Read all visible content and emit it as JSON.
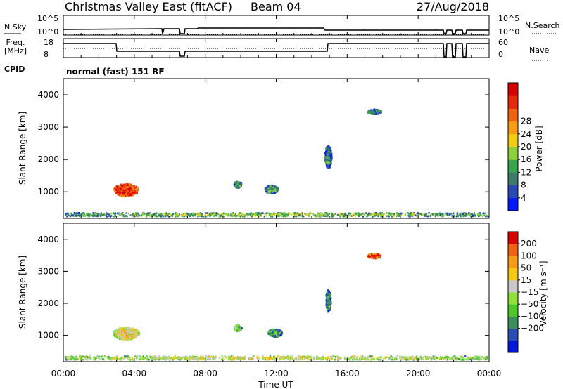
{
  "header": {
    "title": "Christmas Valley East (fitACF)",
    "beam": "Beam 04",
    "date": "27/Aug/2018"
  },
  "top_panels": {
    "nsky_label": "N.Sky",
    "nsearch_label": "N.Search",
    "nsky_ticks": [
      "10^5",
      "10^0"
    ],
    "freq_label_1": "Freq.",
    "freq_label_2": "[MHz]",
    "freq_ticks": [
      "18",
      "8"
    ],
    "nave_label": "Nave",
    "nave_ticks": [
      "60",
      "0"
    ],
    "cpid_label": "CPID",
    "cpid_value": "normal (fast) 151 RF"
  },
  "x_axis": {
    "label": "Time UT",
    "ticks": [
      "00:00",
      "04:00",
      "08:00",
      "12:00",
      "16:00",
      "20:00",
      "00:00"
    ],
    "tick_hours": [
      0,
      4,
      8,
      12,
      16,
      20,
      24
    ]
  },
  "chart_data": [
    {
      "type": "heatmap",
      "title": "Power",
      "ylabel": "Slant Range [km]",
      "xlabel": "Time UT",
      "xlim_hours": [
        0,
        24
      ],
      "ylim_km": [
        180,
        4500
      ],
      "yticks": [
        "1000",
        "2000",
        "3000",
        "4000"
      ],
      "colorbar_label": "Power [dB]",
      "colorbar_ticks": [
        "4",
        "8",
        "12",
        "16",
        "20",
        "24",
        "28"
      ],
      "colorbar_colors": [
        "#0019ff",
        "#2a47b2",
        "#3d7b6b",
        "#3aa34d",
        "#8fd13d",
        "#f0ce14",
        "#f59e14",
        "#f0640f",
        "#e62a0a",
        "#d90000"
      ],
      "echoes": [
        {
          "t": 3.5,
          "r": 1080,
          "dt": 1.4,
          "dr": 380,
          "level": 0.9
        },
        {
          "t": 9.8,
          "r": 1250,
          "dt": 0.45,
          "dr": 200,
          "level": 0.35
        },
        {
          "t": 11.7,
          "r": 1100,
          "dt": 0.8,
          "dr": 250,
          "level": 0.35
        },
        {
          "t": 17.5,
          "r": 3500,
          "dt": 0.8,
          "dr": 150,
          "level": 0.3
        },
        {
          "t": 14.9,
          "r": 2100,
          "dt": 0.4,
          "dr": 700,
          "level": 0.3
        },
        {
          "t": 12.0,
          "r": 320,
          "dt": 24.0,
          "dr": 110,
          "level": 0.45
        }
      ]
    },
    {
      "type": "heatmap",
      "title": "Velocity",
      "ylabel": "Slant Range [km]",
      "xlabel": "Time UT",
      "xlim_hours": [
        0,
        24
      ],
      "ylim_km": [
        180,
        4500
      ],
      "yticks": [
        "1000",
        "2000",
        "3000",
        "4000"
      ],
      "colorbar_label": "Velocity [m s⁻¹]",
      "colorbar_ticks": [
        "200",
        "100",
        "50",
        "15",
        "−15",
        "−50",
        "−100",
        "−200"
      ],
      "colorbar_colors": [
        "#0019d9",
        "#2a4db3",
        "#3d8f5a",
        "#4fc62e",
        "#8fe03a",
        "#c8c8c8",
        "#f5c814",
        "#f59e14",
        "#f0640f",
        "#d90000"
      ],
      "echoes": [
        {
          "t": 3.5,
          "r": 1080,
          "dt": 1.5,
          "dr": 380,
          "level": 0.65
        },
        {
          "t": 9.8,
          "r": 1250,
          "dt": 0.45,
          "dr": 200,
          "level": 0.45
        },
        {
          "t": 11.9,
          "r": 1100,
          "dt": 0.8,
          "dr": 250,
          "level": 0.35
        },
        {
          "t": 17.5,
          "r": 3500,
          "dt": 0.8,
          "dr": 150,
          "level": 0.95
        },
        {
          "t": 14.9,
          "r": 2100,
          "dt": 0.3,
          "dr": 700,
          "level": 0.3
        },
        {
          "t": 12.0,
          "r": 320,
          "dt": 24.0,
          "dr": 110,
          "level": 0.6
        }
      ]
    }
  ]
}
